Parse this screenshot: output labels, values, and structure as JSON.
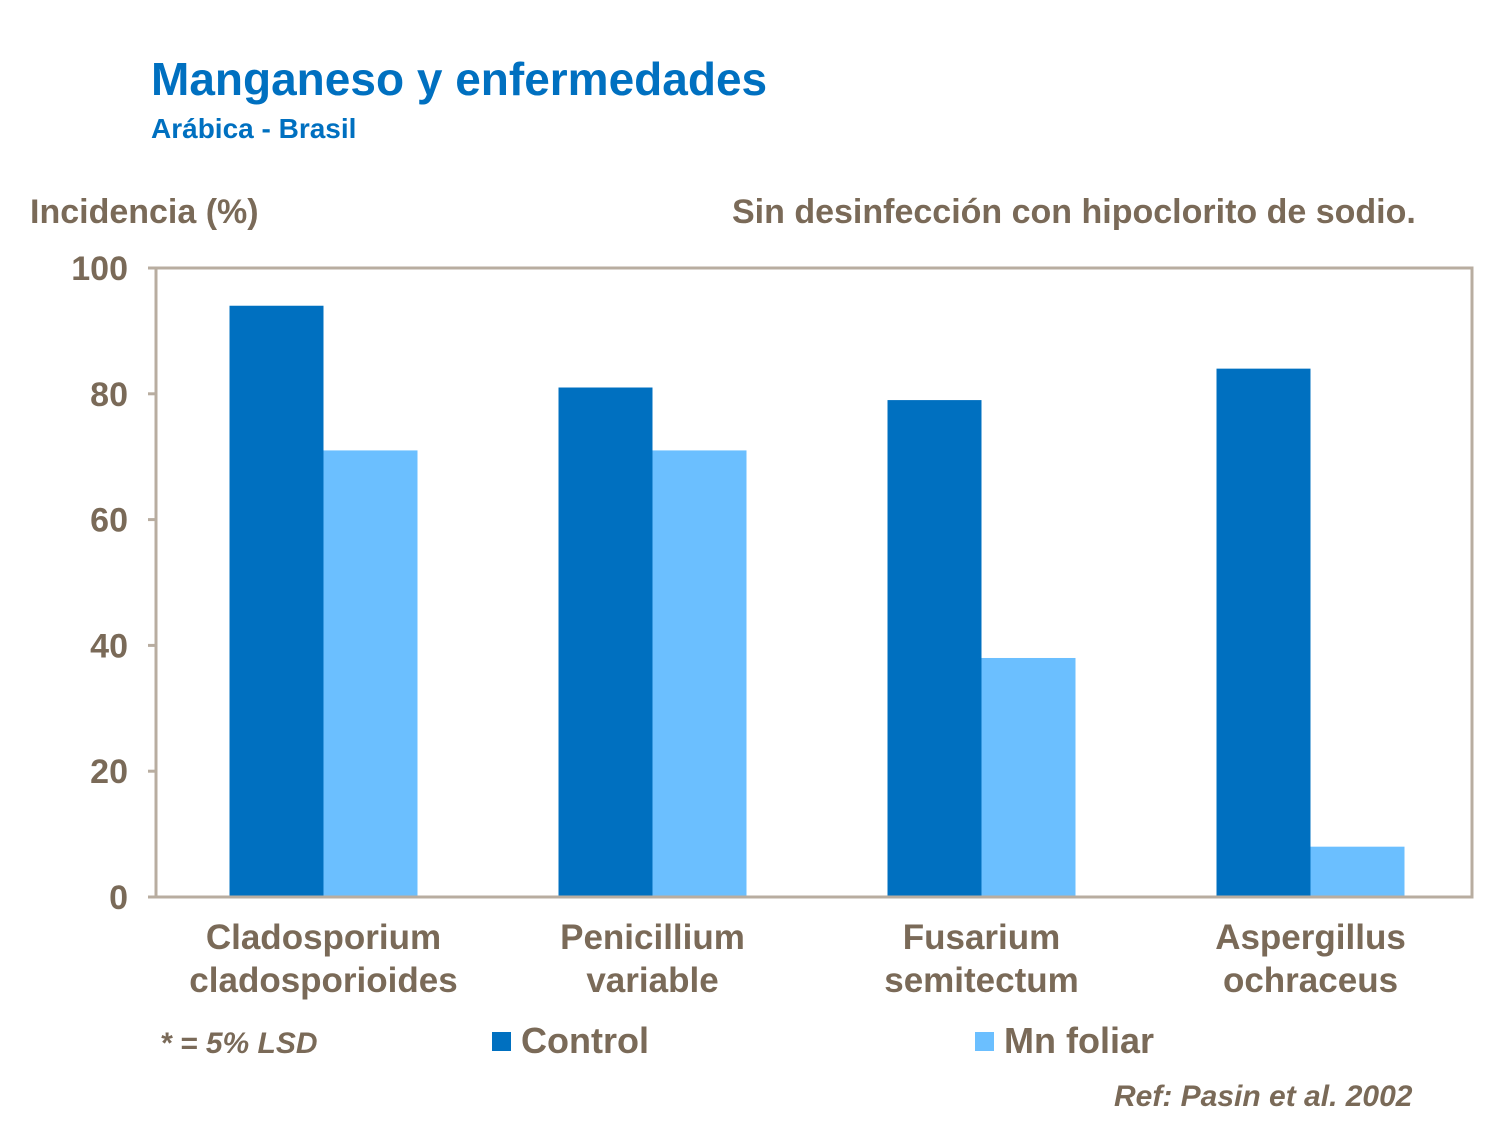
{
  "chart_data": {
    "type": "bar",
    "title": "Manganeso y enfermedades",
    "subtitle": "Arábica - Brasil",
    "ylabel": "Incidencia (%)",
    "xlabel": "",
    "annotation": "Sin desinfección con hipoclorito de sodio.",
    "footnote": "* = 5% LSD",
    "reference": "Ref: Pasin et al. 2002",
    "categories": [
      [
        "Cladosporium",
        "cladosporioides"
      ],
      [
        "Penicillium",
        "variable"
      ],
      [
        "Fusarium",
        "semitectum"
      ],
      [
        "Aspergillus",
        "ochraceus"
      ]
    ],
    "series": [
      {
        "name": "Control",
        "color": "#0070C0",
        "values": [
          94,
          81,
          79,
          84
        ]
      },
      {
        "name": "Mn foliar",
        "color": "#6BBFFF",
        "values": [
          71,
          71,
          38,
          8
        ]
      }
    ],
    "ylim": [
      0,
      100
    ],
    "yticks": [
      "0",
      "20",
      "40",
      "60",
      "80",
      "100"
    ],
    "grid": false,
    "legend": "bottom",
    "frame_color": "#B8ADA0",
    "text_color": "#7A6A58"
  }
}
